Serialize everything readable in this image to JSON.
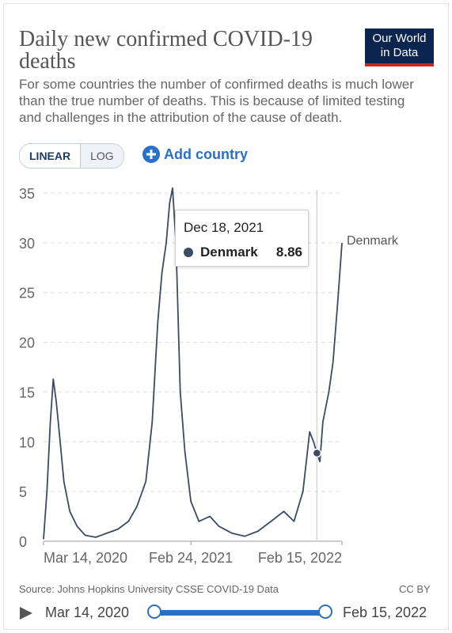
{
  "header": {
    "title": "Daily new confirmed COVID-19 deaths",
    "subtitle": "For some countries the number of confirmed deaths is much lower than the true number of deaths. This is because of limited testing and challenges in the attribution of the cause of death.",
    "logo_line1": "Our World",
    "logo_line2": "in Data"
  },
  "controls": {
    "linear_label": "LINEAR",
    "log_label": "LOG",
    "active_scale": "linear",
    "add_country_label": "Add country"
  },
  "tooltip": {
    "date": "Dec 18, 2021",
    "country": "Denmark",
    "value": "8.86"
  },
  "footer": {
    "source": "Source: Johns Hopkins University CSSE COVID-19 Data",
    "license": "CC BY"
  },
  "timeline": {
    "start_label": "Mar 14, 2020",
    "end_label": "Feb 15, 2022"
  },
  "colors": {
    "line": "#3d4a63",
    "accent": "#2a6fc9",
    "grid": "#dddddd",
    "logo_bg": "#0b2450",
    "logo_bar": "#ce261e"
  },
  "chart_data": {
    "type": "line",
    "title": "Daily new confirmed COVID-19 deaths",
    "series": [
      {
        "name": "Denmark",
        "x": [
          "2020-03-14",
          "2020-03-22",
          "2020-03-30",
          "2020-04-06",
          "2020-04-13",
          "2020-04-20",
          "2020-05-01",
          "2020-05-15",
          "2020-06-01",
          "2020-06-20",
          "2020-07-15",
          "2020-08-10",
          "2020-09-05",
          "2020-09-30",
          "2020-10-20",
          "2020-11-10",
          "2020-11-25",
          "2020-12-08",
          "2020-12-18",
          "2020-12-28",
          "2021-01-05",
          "2021-01-12",
          "2021-01-20",
          "2021-01-30",
          "2021-02-10",
          "2021-02-24",
          "2021-03-15",
          "2021-04-10",
          "2021-05-01",
          "2021-06-01",
          "2021-07-01",
          "2021-08-01",
          "2021-09-01",
          "2021-10-01",
          "2021-10-25",
          "2021-11-15",
          "2021-12-01",
          "2021-12-10",
          "2021-12-18",
          "2021-12-25",
          "2022-01-01",
          "2022-01-15",
          "2022-01-25",
          "2022-02-05",
          "2022-02-15"
        ],
        "y": [
          0.2,
          5,
          12,
          16.3,
          14,
          11,
          6,
          3,
          1.5,
          0.6,
          0.4,
          0.8,
          1.2,
          2,
          3.5,
          6,
          12,
          22,
          27,
          30,
          34,
          35.5,
          30,
          15,
          9,
          4,
          2,
          2.5,
          1.5,
          0.8,
          0.5,
          1,
          2,
          3,
          2,
          5,
          11,
          10,
          8.86,
          8,
          12,
          15,
          18,
          24,
          30
        ]
      }
    ],
    "xlabel": "",
    "ylabel": "",
    "ylim": [
      0,
      35
    ],
    "y_ticks": [
      "0",
      "5",
      "10",
      "15",
      "20",
      "25",
      "30",
      "35"
    ],
    "x_ticks": [
      "Mar 14, 2020",
      "Feb 24, 2021",
      "Feb 15, 2022"
    ],
    "x_tick_dates": [
      "2020-03-14",
      "2021-02-24",
      "2022-02-15"
    ],
    "highlight_date": "2021-12-18",
    "highlight_value": 8.86,
    "grid": true,
    "legend": "line-end label"
  }
}
